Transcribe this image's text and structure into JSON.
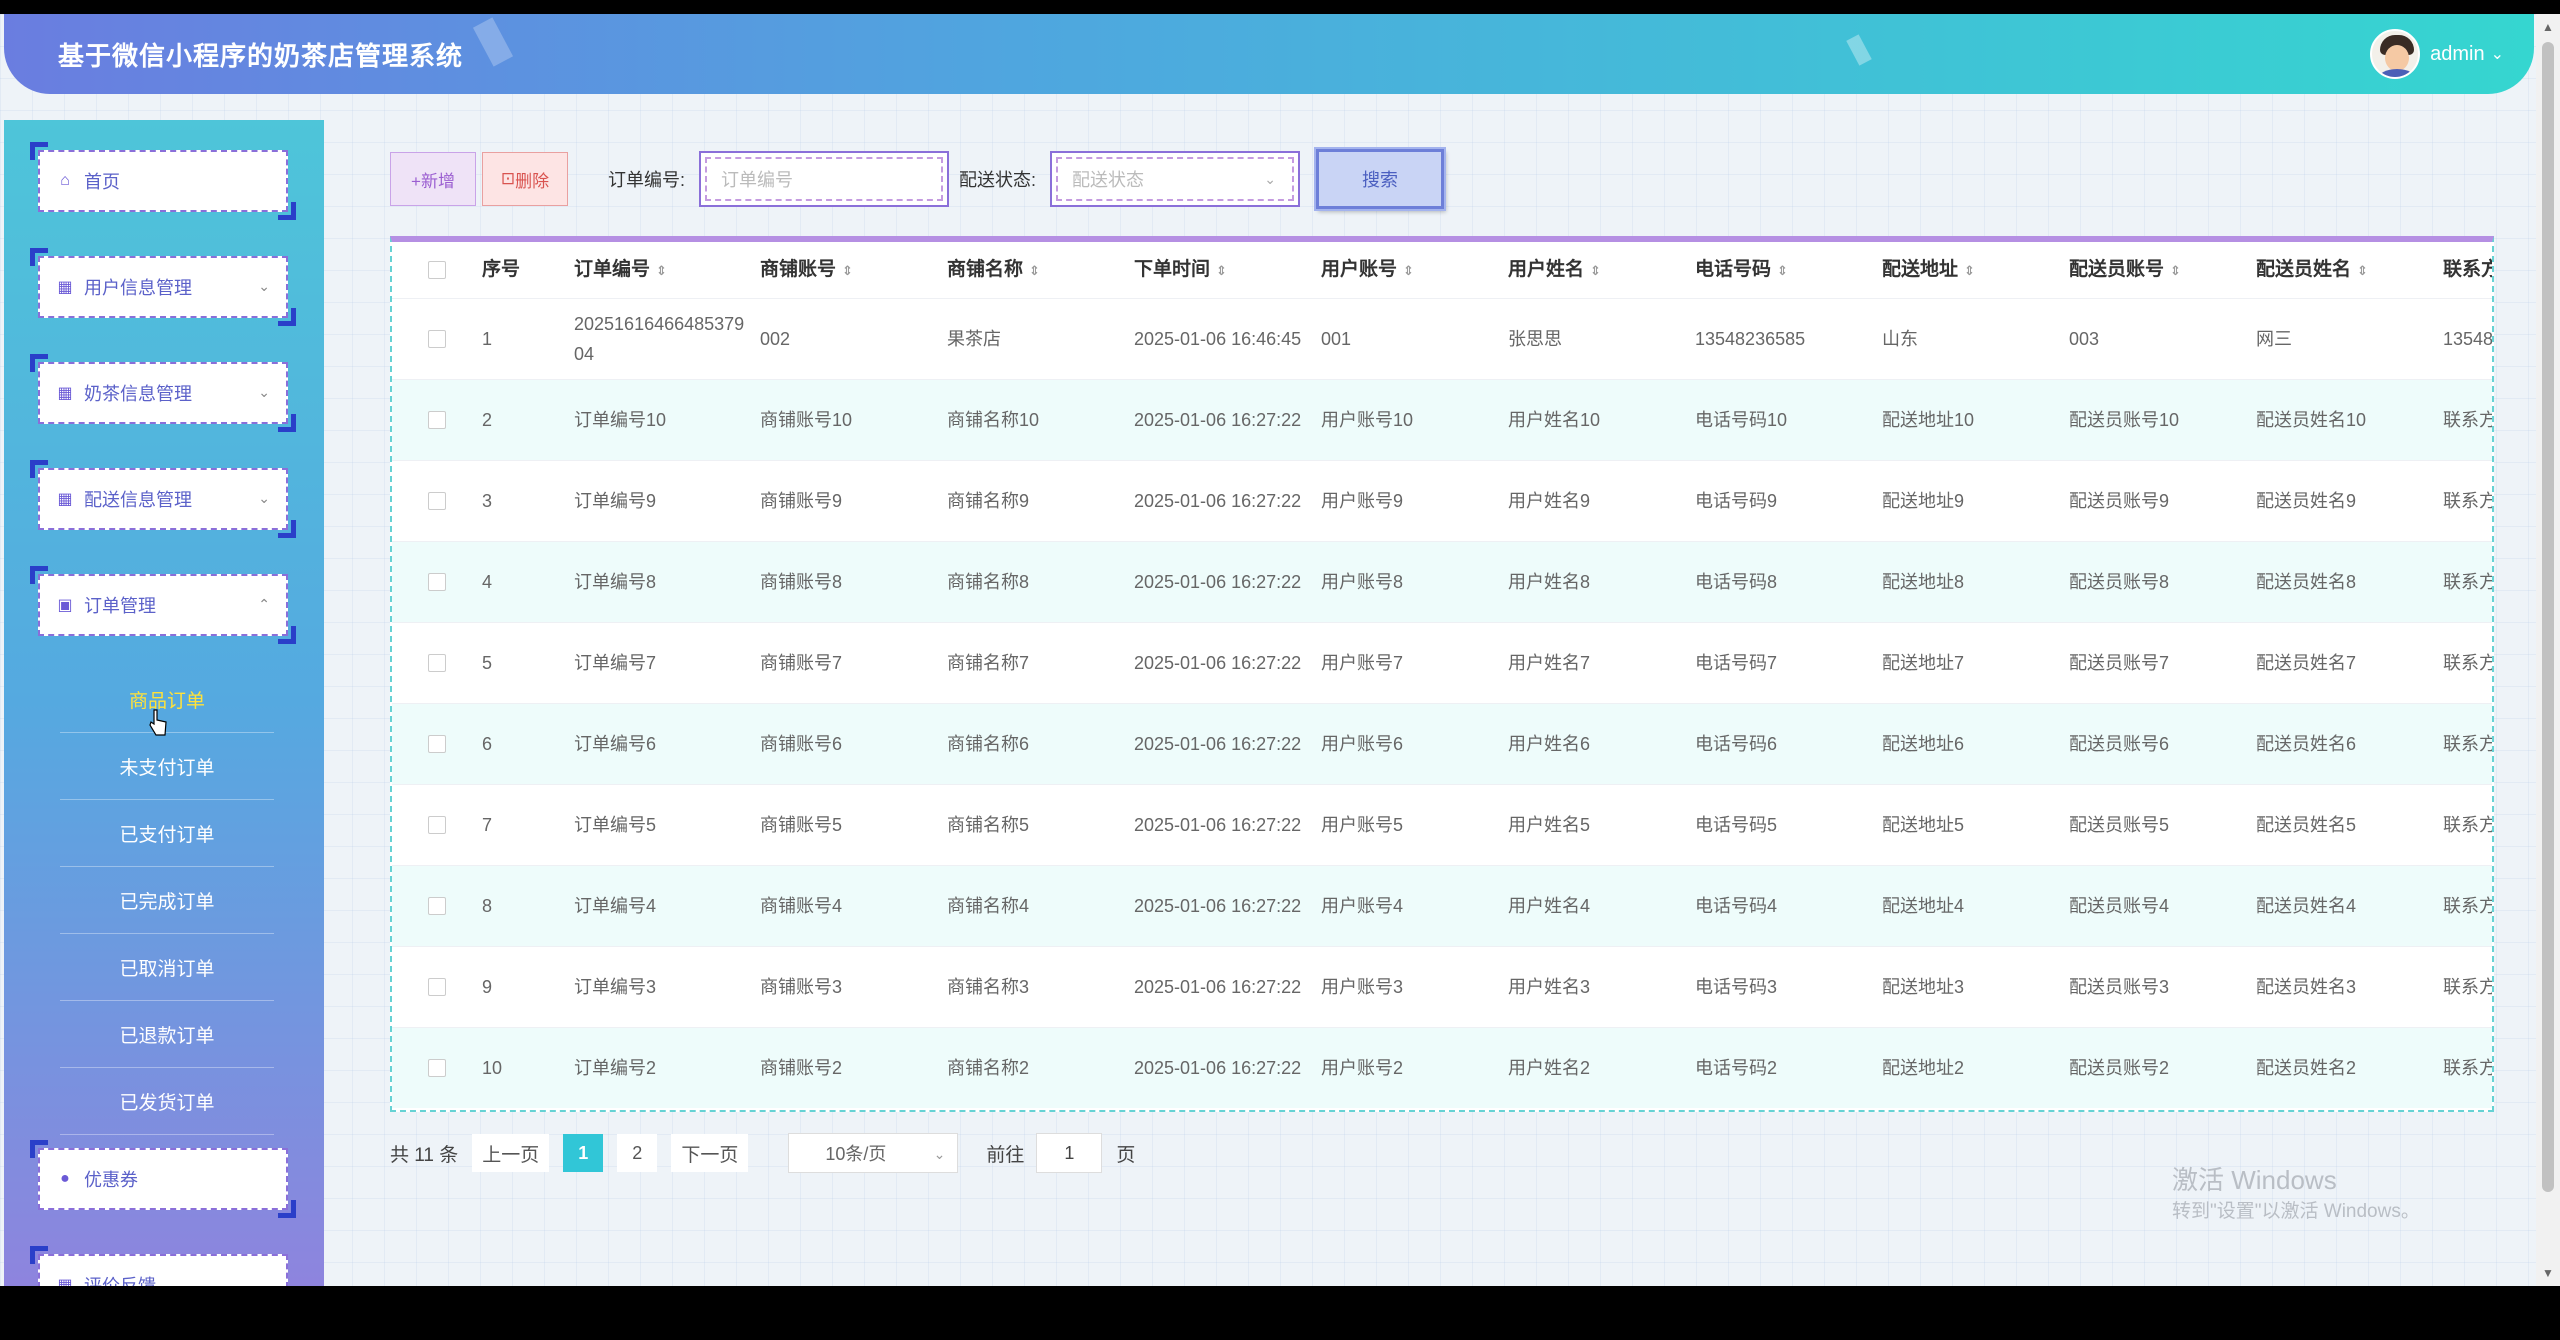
{
  "header": {
    "title": "基于微信小程序的奶茶店管理系统",
    "user": "admin"
  },
  "sidebar": {
    "menus": [
      {
        "label": "首页",
        "icon": "home-icon"
      },
      {
        "label": "用户信息管理",
        "icon": "grid-icon"
      },
      {
        "label": "奶茶信息管理",
        "icon": "grid-icon"
      },
      {
        "label": "配送信息管理",
        "icon": "grid-icon"
      },
      {
        "label": "订单管理",
        "icon": "calendar-icon"
      },
      {
        "label": "优惠券",
        "icon": "drop-icon"
      },
      {
        "label": "评价反馈",
        "icon": "grid-icon"
      }
    ],
    "sub_items": [
      "商品订单",
      "未支付订单",
      "已支付订单",
      "已完成订单",
      "已取消订单",
      "已退款订单",
      "已发货订单"
    ]
  },
  "toolbar": {
    "add_label": "+新增",
    "delete_label": "删除",
    "order_no_label": "订单编号:",
    "order_no_placeholder": "订单编号",
    "status_label": "配送状态:",
    "status_placeholder": "配送状态",
    "search_label": "搜索"
  },
  "table": {
    "columns": [
      "序号",
      "订单编号",
      "商铺账号",
      "商铺名称",
      "下单时间",
      "用户账号",
      "用户姓名",
      "电话号码",
      "配送地址",
      "配送员账号",
      "配送员姓名",
      "联系方"
    ],
    "rows": [
      [
        "1",
        "2025161646648537904",
        "002",
        "果茶店",
        "2025-01-06 16:46:45",
        "001",
        "张思思",
        "13548236585",
        "山东",
        "003",
        "网三",
        "13548"
      ],
      [
        "2",
        "订单编号10",
        "商铺账号10",
        "商铺名称10",
        "2025-01-06 16:27:22",
        "用户账号10",
        "用户姓名10",
        "电话号码10",
        "配送地址10",
        "配送员账号10",
        "配送员姓名10",
        "联系方"
      ],
      [
        "3",
        "订单编号9",
        "商铺账号9",
        "商铺名称9",
        "2025-01-06 16:27:22",
        "用户账号9",
        "用户姓名9",
        "电话号码9",
        "配送地址9",
        "配送员账号9",
        "配送员姓名9",
        "联系方"
      ],
      [
        "4",
        "订单编号8",
        "商铺账号8",
        "商铺名称8",
        "2025-01-06 16:27:22",
        "用户账号8",
        "用户姓名8",
        "电话号码8",
        "配送地址8",
        "配送员账号8",
        "配送员姓名8",
        "联系方"
      ],
      [
        "5",
        "订单编号7",
        "商铺账号7",
        "商铺名称7",
        "2025-01-06 16:27:22",
        "用户账号7",
        "用户姓名7",
        "电话号码7",
        "配送地址7",
        "配送员账号7",
        "配送员姓名7",
        "联系方"
      ],
      [
        "6",
        "订单编号6",
        "商铺账号6",
        "商铺名称6",
        "2025-01-06 16:27:22",
        "用户账号6",
        "用户姓名6",
        "电话号码6",
        "配送地址6",
        "配送员账号6",
        "配送员姓名6",
        "联系方"
      ],
      [
        "7",
        "订单编号5",
        "商铺账号5",
        "商铺名称5",
        "2025-01-06 16:27:22",
        "用户账号5",
        "用户姓名5",
        "电话号码5",
        "配送地址5",
        "配送员账号5",
        "配送员姓名5",
        "联系方"
      ],
      [
        "8",
        "订单编号4",
        "商铺账号4",
        "商铺名称4",
        "2025-01-06 16:27:22",
        "用户账号4",
        "用户姓名4",
        "电话号码4",
        "配送地址4",
        "配送员账号4",
        "配送员姓名4",
        "联系方"
      ],
      [
        "9",
        "订单编号3",
        "商铺账号3",
        "商铺名称3",
        "2025-01-06 16:27:22",
        "用户账号3",
        "用户姓名3",
        "电话号码3",
        "配送地址3",
        "配送员账号3",
        "配送员姓名3",
        "联系方"
      ],
      [
        "10",
        "订单编号2",
        "商铺账号2",
        "商铺名称2",
        "2025-01-06 16:27:22",
        "用户账号2",
        "用户姓名2",
        "电话号码2",
        "配送地址2",
        "配送员账号2",
        "配送员姓名2",
        "联系方"
      ]
    ]
  },
  "pagination": {
    "total": "共 11 条",
    "prev": "上一页",
    "pages": [
      "1",
      "2"
    ],
    "next": "下一页",
    "page_size": "10条/页",
    "goto_label": "前往",
    "goto_value": "1",
    "unit": "页"
  },
  "watermark": {
    "line1": "激活 Windows",
    "line2": "转到\"设置\"以激活 Windows。"
  },
  "colors": {
    "accent": "#31c6d7",
    "menu_border": "#2a3fc9",
    "table_top": "#b58fe3"
  }
}
